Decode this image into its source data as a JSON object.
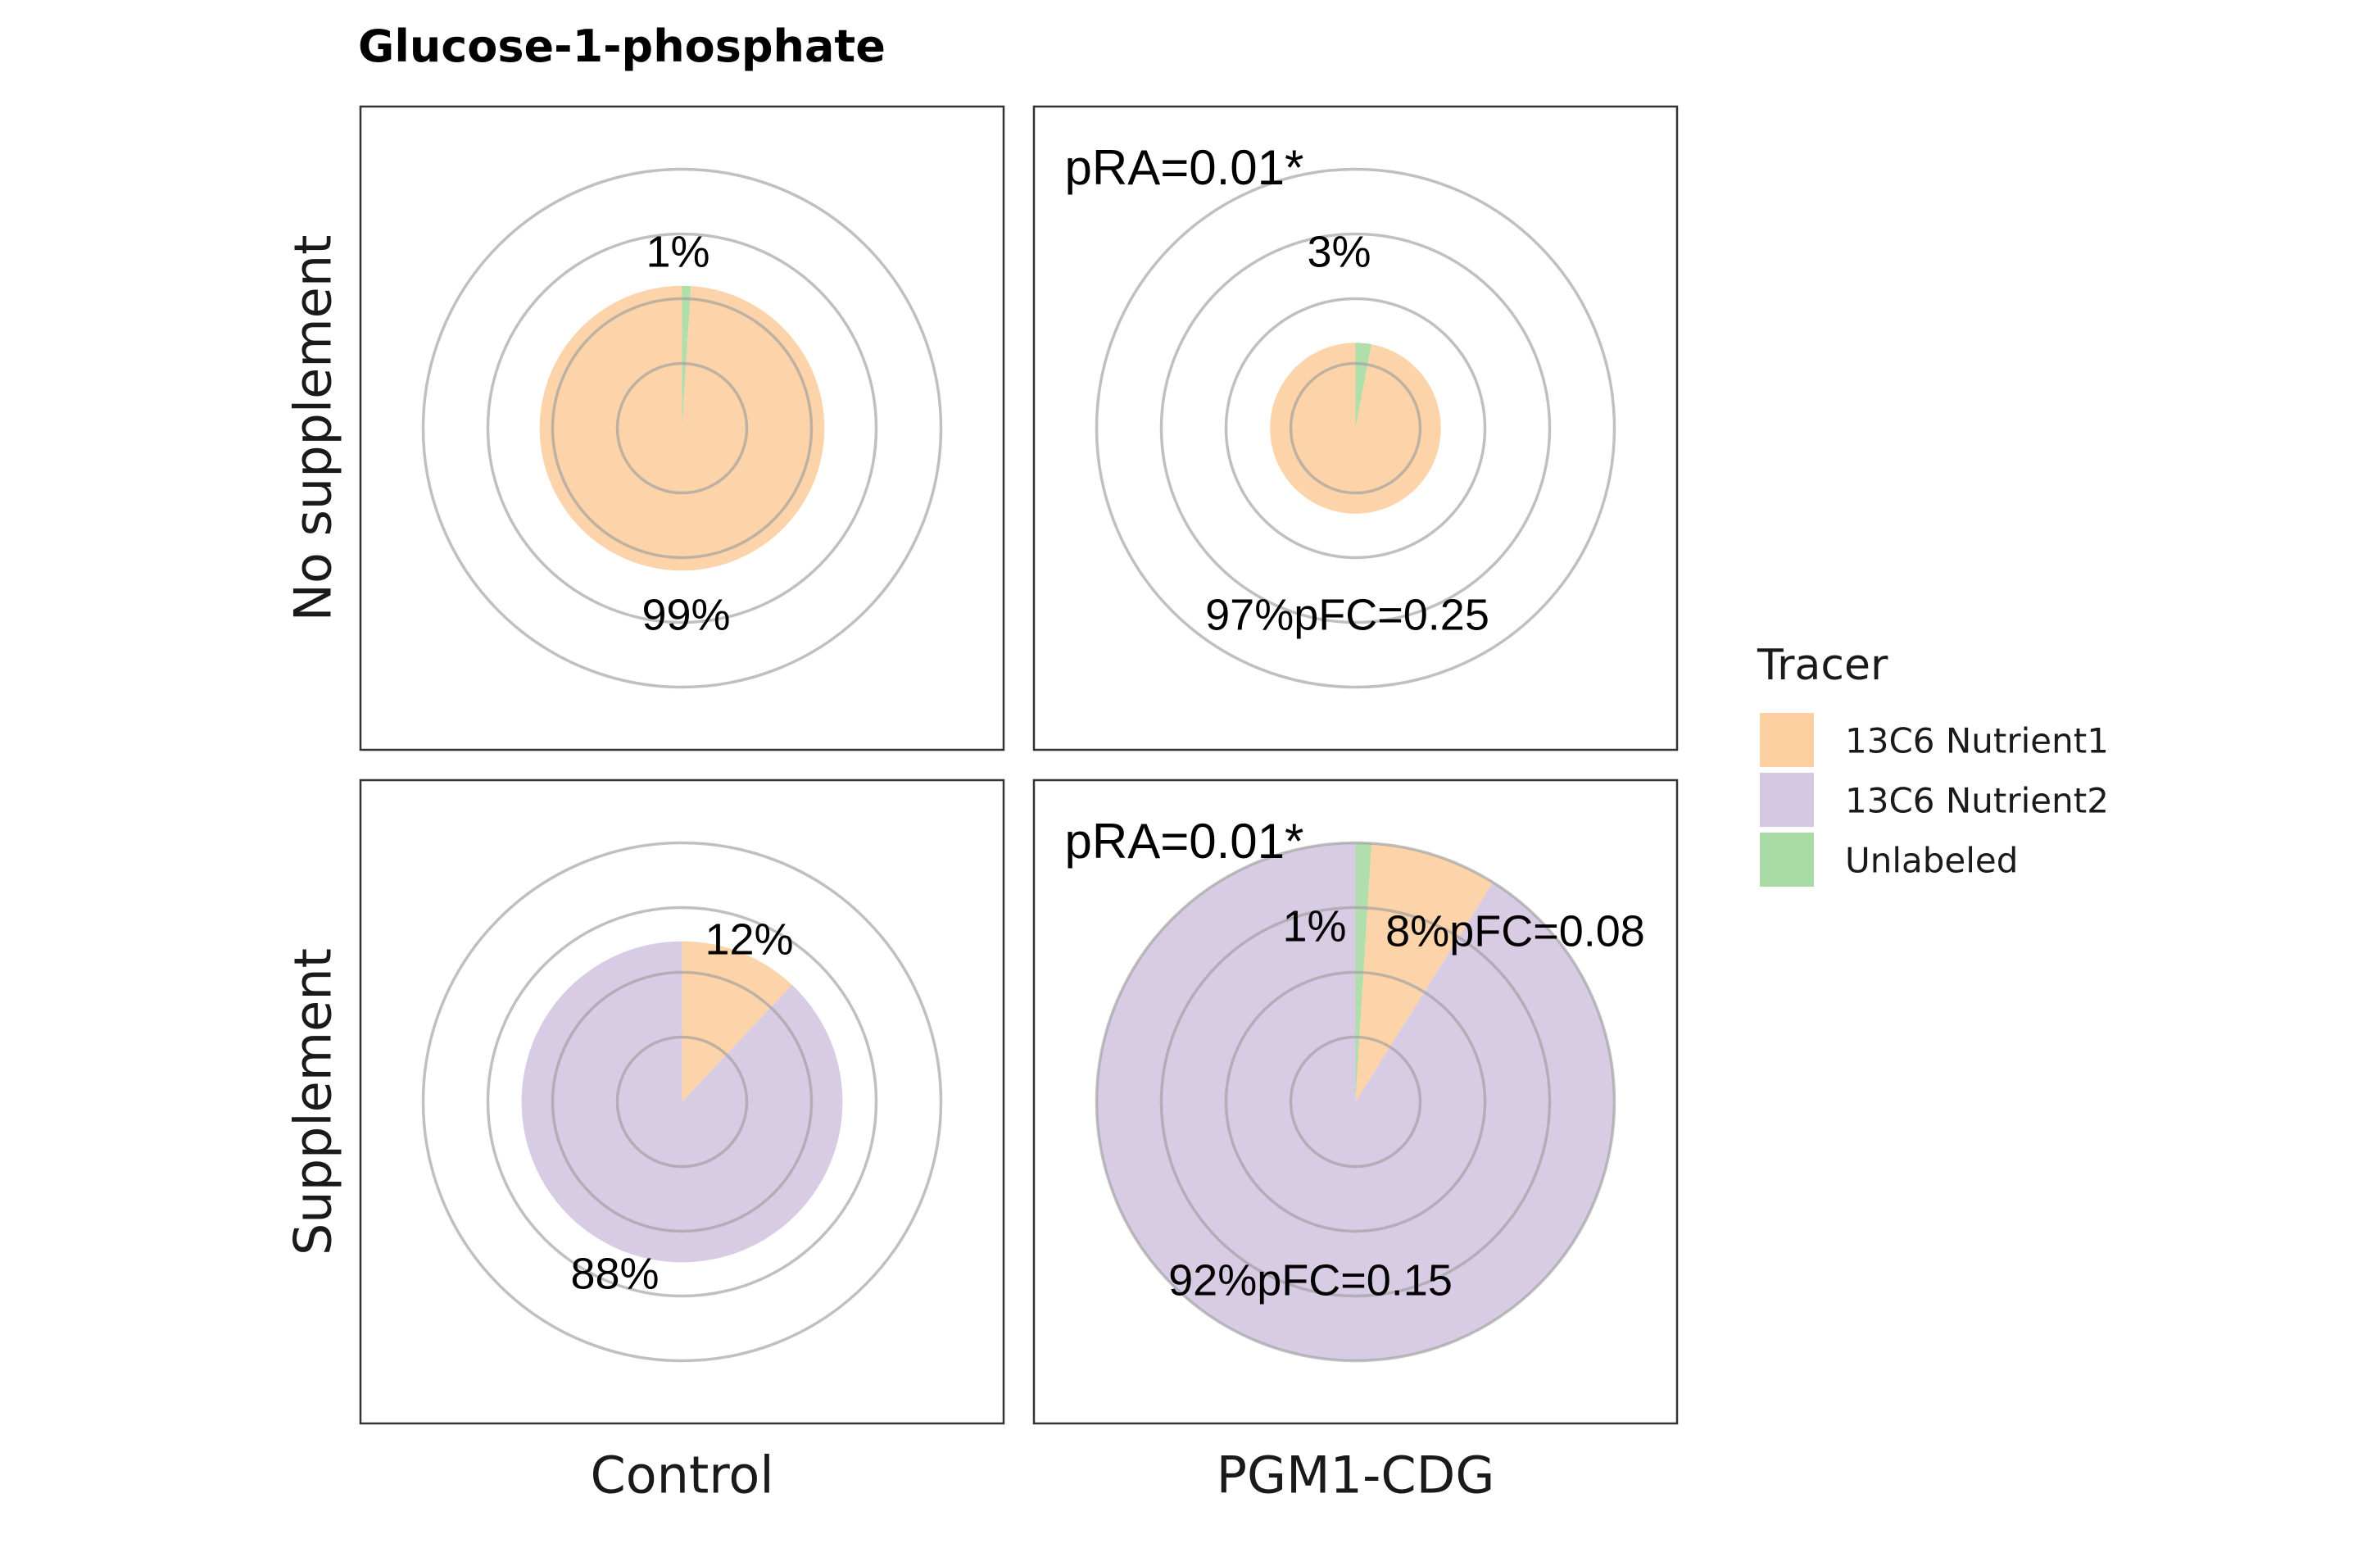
{
  "chart_data": {
    "type": "pie",
    "title": "Glucose-1-phosphate",
    "columns": [
      "Control",
      "PGM1-CDG"
    ],
    "rows": [
      "No supplement",
      "Supplement"
    ],
    "legend": {
      "title": "Tracer",
      "position": "right",
      "entries": [
        {
          "name": "13C6 Nutrient1",
          "color": "#fdd0a2"
        },
        {
          "name": "13C6 Nutrient2",
          "color": "#d4c8e2"
        },
        {
          "name": "Unlabeled",
          "color": "#a9dba6"
        }
      ]
    },
    "grid": true,
    "panels": [
      {
        "row": "No supplement",
        "column": "Control",
        "radius_scale": 0.55,
        "annotation": "",
        "slices": [
          {
            "tracer": "13C6 Nutrient1",
            "value": 99,
            "label": "99%"
          },
          {
            "tracer": "Unlabeled",
            "value": 1,
            "label": "1%"
          }
        ]
      },
      {
        "row": "No supplement",
        "column": "PGM1-CDG",
        "radius_scale": 0.33,
        "annotation": "pRA=0.01*",
        "slices": [
          {
            "tracer": "13C6 Nutrient1",
            "value": 97,
            "label": "97%pFC=0.25"
          },
          {
            "tracer": "Unlabeled",
            "value": 3,
            "label": "3%"
          }
        ]
      },
      {
        "row": "Supplement",
        "column": "Control",
        "radius_scale": 0.62,
        "annotation": "",
        "slices": [
          {
            "tracer": "13C6 Nutrient2",
            "value": 88,
            "label": "88%"
          },
          {
            "tracer": "13C6 Nutrient1",
            "value": 12,
            "label": "12%"
          }
        ]
      },
      {
        "row": "Supplement",
        "column": "PGM1-CDG",
        "radius_scale": 1.0,
        "annotation": "pRA=0.01*",
        "slices": [
          {
            "tracer": "13C6 Nutrient2",
            "value": 92,
            "label": "92%pFC=0.15"
          },
          {
            "tracer": "13C6 Nutrient1",
            "value": 8,
            "label": "8%pFC=0.08"
          },
          {
            "tracer": "Unlabeled",
            "value": 1,
            "label": "1%"
          }
        ]
      }
    ]
  }
}
